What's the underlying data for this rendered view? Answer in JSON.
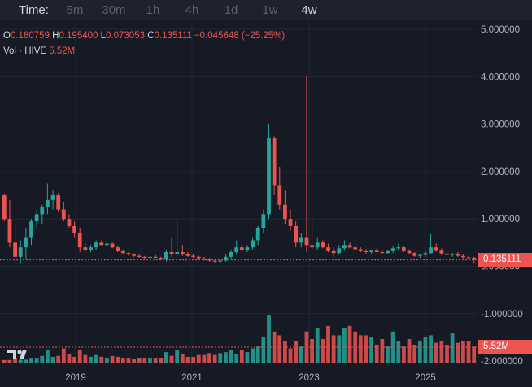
{
  "toolbar": {
    "label": "Time:",
    "timeframes": [
      {
        "label": "5m",
        "active": false
      },
      {
        "label": "30m",
        "active": false
      },
      {
        "label": "1h",
        "active": false
      },
      {
        "label": "4h",
        "active": false
      },
      {
        "label": "1d",
        "active": false
      },
      {
        "label": "1w",
        "active": false
      },
      {
        "label": "4w",
        "active": true
      }
    ]
  },
  "legend": {
    "o_key": "O",
    "o_val": "0.180759",
    "h_key": "H",
    "h_val": "0.195400",
    "l_key": "L",
    "l_val": "0.073053",
    "c_key": "C",
    "c_val": "0.135111",
    "change": "−0.045648 (−25.25%)",
    "vol_key": "Vol · HIVE",
    "vol_val": "5.52M"
  },
  "price_tag": "0.135111",
  "volume_tag": "5.52M",
  "colors": {
    "up": "#26a69a",
    "down": "#ef5350",
    "bg": "#161a25",
    "grid": "#232734",
    "text": "#d1d4dc",
    "axis_text": "#b2b5be"
  },
  "chart_data": {
    "type": "candlestick",
    "price_axis": {
      "ticks": [
        5,
        4,
        3,
        2,
        1,
        0,
        -1,
        -2
      ],
      "tick_labels": [
        "5.000000",
        "4.000000",
        "3.000000",
        "2.000000",
        "1.000000",
        "0.000000",
        "-1.000000",
        "-2.000000"
      ]
    },
    "time_axis": {
      "labels": [
        "2019",
        "2021",
        "2023",
        "2025"
      ]
    },
    "last_close": 0.135111,
    "last_volume": "5.52M",
    "candles": [
      [
        1.5,
        1.52,
        0.95,
        1.0
      ],
      [
        1.0,
        1.4,
        0.4,
        0.5
      ],
      [
        0.5,
        0.9,
        0.08,
        0.2
      ],
      [
        0.2,
        0.55,
        0.05,
        0.4
      ],
      [
        0.4,
        0.8,
        0.15,
        0.6
      ],
      [
        0.6,
        1.0,
        0.45,
        0.95
      ],
      [
        0.95,
        1.2,
        0.8,
        1.1
      ],
      [
        1.1,
        1.3,
        0.9,
        1.25
      ],
      [
        1.25,
        1.75,
        1.1,
        1.4
      ],
      [
        1.4,
        1.6,
        1.2,
        1.5
      ],
      [
        1.5,
        1.55,
        1.15,
        1.2
      ],
      [
        1.2,
        1.35,
        0.95,
        1.0
      ],
      [
        1.0,
        1.1,
        0.8,
        0.85
      ],
      [
        0.85,
        0.95,
        0.6,
        0.7
      ],
      [
        0.7,
        0.8,
        0.3,
        0.4
      ],
      [
        0.4,
        0.5,
        0.3,
        0.35
      ],
      [
        0.35,
        0.45,
        0.3,
        0.4
      ],
      [
        0.4,
        0.55,
        0.35,
        0.5
      ],
      [
        0.5,
        0.55,
        0.42,
        0.45
      ],
      [
        0.45,
        0.52,
        0.4,
        0.48
      ],
      [
        0.48,
        0.5,
        0.38,
        0.4
      ],
      [
        0.4,
        0.42,
        0.3,
        0.32
      ],
      [
        0.32,
        0.35,
        0.25,
        0.28
      ],
      [
        0.28,
        0.3,
        0.22,
        0.25
      ],
      [
        0.25,
        0.27,
        0.2,
        0.22
      ],
      [
        0.22,
        0.25,
        0.18,
        0.2
      ],
      [
        0.2,
        0.22,
        0.16,
        0.18
      ],
      [
        0.18,
        0.22,
        0.15,
        0.2
      ],
      [
        0.2,
        0.24,
        0.17,
        0.18
      ],
      [
        0.18,
        0.2,
        0.13,
        0.15
      ],
      [
        0.15,
        0.35,
        0.1,
        0.3
      ],
      [
        0.3,
        0.6,
        0.2,
        0.25
      ],
      [
        0.25,
        1.0,
        0.2,
        0.3
      ],
      [
        0.3,
        0.45,
        0.22,
        0.25
      ],
      [
        0.25,
        0.3,
        0.2,
        0.22
      ],
      [
        0.22,
        0.25,
        0.18,
        0.2
      ],
      [
        0.2,
        0.22,
        0.15,
        0.17
      ],
      [
        0.17,
        0.2,
        0.12,
        0.14
      ],
      [
        0.14,
        0.18,
        0.1,
        0.12
      ],
      [
        0.12,
        0.15,
        0.08,
        0.1
      ],
      [
        0.1,
        0.14,
        0.06,
        0.12
      ],
      [
        0.12,
        0.25,
        0.1,
        0.2
      ],
      [
        0.2,
        0.35,
        0.15,
        0.3
      ],
      [
        0.3,
        0.55,
        0.25,
        0.4
      ],
      [
        0.4,
        0.5,
        0.3,
        0.35
      ],
      [
        0.35,
        0.45,
        0.3,
        0.4
      ],
      [
        0.4,
        0.6,
        0.35,
        0.55
      ],
      [
        0.55,
        0.85,
        0.45,
        0.8
      ],
      [
        0.8,
        1.2,
        0.7,
        1.1
      ],
      [
        1.1,
        3.0,
        1.0,
        2.7
      ],
      [
        2.7,
        2.75,
        1.5,
        1.7
      ],
      [
        1.7,
        2.1,
        1.2,
        1.3
      ],
      [
        1.3,
        1.6,
        0.9,
        1.0
      ],
      [
        1.0,
        1.2,
        0.75,
        0.85
      ],
      [
        0.85,
        0.95,
        0.4,
        0.5
      ],
      [
        0.5,
        0.7,
        0.4,
        0.6
      ],
      [
        0.6,
        4.0,
        0.3,
        0.45
      ],
      [
        0.45,
        1.0,
        0.35,
        0.4
      ],
      [
        0.4,
        0.6,
        0.35,
        0.5
      ],
      [
        0.5,
        0.55,
        0.38,
        0.4
      ],
      [
        0.4,
        0.48,
        0.3,
        0.32
      ],
      [
        0.32,
        0.4,
        0.2,
        0.28
      ],
      [
        0.28,
        0.45,
        0.24,
        0.38
      ],
      [
        0.38,
        0.55,
        0.33,
        0.45
      ],
      [
        0.45,
        0.5,
        0.38,
        0.4
      ],
      [
        0.4,
        0.45,
        0.34,
        0.36
      ],
      [
        0.36,
        0.4,
        0.3,
        0.32
      ],
      [
        0.32,
        0.36,
        0.27,
        0.3
      ],
      [
        0.3,
        0.35,
        0.26,
        0.33
      ],
      [
        0.33,
        0.38,
        0.28,
        0.3
      ],
      [
        0.3,
        0.34,
        0.26,
        0.28
      ],
      [
        0.28,
        0.35,
        0.25,
        0.32
      ],
      [
        0.32,
        0.42,
        0.28,
        0.38
      ],
      [
        0.38,
        0.48,
        0.33,
        0.4
      ],
      [
        0.4,
        0.42,
        0.3,
        0.32
      ],
      [
        0.32,
        0.36,
        0.25,
        0.28
      ],
      [
        0.28,
        0.3,
        0.2,
        0.22
      ],
      [
        0.22,
        0.26,
        0.18,
        0.24
      ],
      [
        0.24,
        0.32,
        0.2,
        0.28
      ],
      [
        0.28,
        0.68,
        0.25,
        0.4
      ],
      [
        0.4,
        0.48,
        0.3,
        0.33
      ],
      [
        0.33,
        0.38,
        0.24,
        0.27
      ],
      [
        0.27,
        0.3,
        0.22,
        0.24
      ],
      [
        0.24,
        0.28,
        0.2,
        0.26
      ],
      [
        0.26,
        0.3,
        0.2,
        0.22
      ],
      [
        0.22,
        0.25,
        0.17,
        0.19
      ],
      [
        0.19,
        0.22,
        0.16,
        0.18
      ],
      [
        0.18,
        0.2,
        0.07,
        0.135
      ]
    ],
    "volumes": [
      0.18,
      0.18,
      0.3,
      0.2,
      0.2,
      0.3,
      0.3,
      0.4,
      0.7,
      0.35,
      0.4,
      0.8,
      0.5,
      0.35,
      0.7,
      0.45,
      0.35,
      0.45,
      0.35,
      0.3,
      0.4,
      0.35,
      0.3,
      0.3,
      0.25,
      0.3,
      0.3,
      0.3,
      0.3,
      0.3,
      0.6,
      0.4,
      0.7,
      0.5,
      0.35,
      0.35,
      0.45,
      0.45,
      0.55,
      0.45,
      0.55,
      0.6,
      0.7,
      0.5,
      0.7,
      0.6,
      0.8,
      0.9,
      1.4,
      2.6,
      1.7,
      1.5,
      1.2,
      0.8,
      1.2,
      0.9,
      1.7,
      1.3,
      1.9,
      1.3,
      2.0,
      1.5,
      1.5,
      1.9,
      2.0,
      1.7,
      1.5,
      1.5,
      1.4,
      1.0,
      1.3,
      0.9,
      1.7,
      1.2,
      0.9,
      1.3,
      1.0,
      1.2,
      1.4,
      1.5,
      1.1,
      1.2,
      1.0,
      1.6,
      1.1,
      1.2,
      1.2,
      0.9
    ]
  }
}
